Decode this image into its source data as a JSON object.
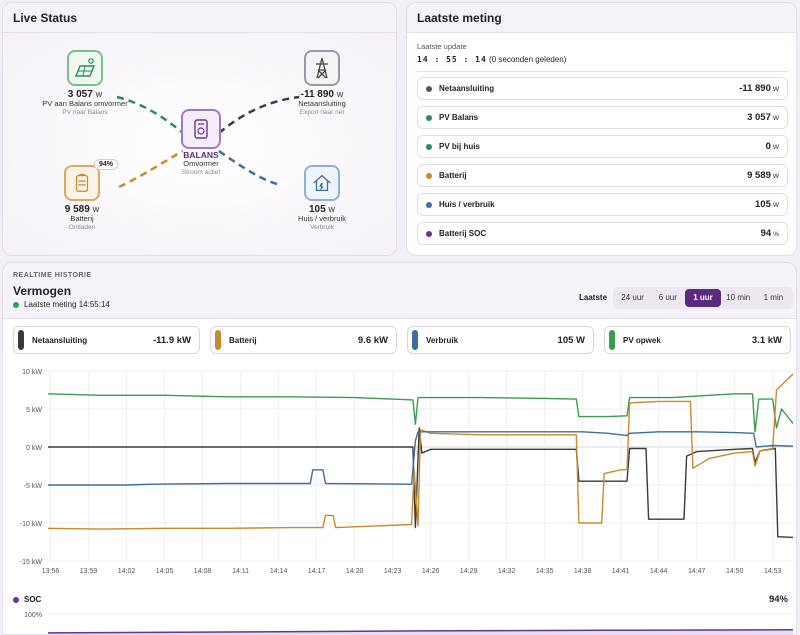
{
  "live": {
    "title": "Live Status",
    "pv": {
      "value": "3 057",
      "unit": "W",
      "label": "PV aan Balans omvormer",
      "sub": "PV naar Balans",
      "icon": "solar-panel-icon"
    },
    "grid": {
      "value": "-11 890",
      "unit": "W",
      "label": "Netaansluiting",
      "sub": "Export naar net",
      "icon": "power-pylon-icon"
    },
    "inverter": {
      "label": "BALANS",
      "name": "Omvormer",
      "sub": "Stroom actief",
      "icon": "inverter-icon"
    },
    "battery": {
      "value": "9 589",
      "unit": "W",
      "label": "Batterij",
      "sub": "Ontladen",
      "soc": "94%",
      "icon": "battery-icon"
    },
    "house": {
      "value": "105",
      "unit": "W",
      "label": "Huis / verbruik",
      "sub": "Verbruik",
      "icon": "house-icon"
    }
  },
  "meting": {
    "title": "Laatste meting",
    "update_label": "Laatste update",
    "update_time": "14 : 55 : 14",
    "update_ago": "(0 seconden geleden)",
    "rows": [
      {
        "label": "Netaansluiting",
        "value": "-11 890",
        "unit": "W",
        "color": "#555555"
      },
      {
        "label": "PV Balans",
        "value": "3 057",
        "unit": "W",
        "color": "#2e8b57"
      },
      {
        "label": "PV bij huis",
        "value": "0",
        "unit": "W",
        "color": "#2e8b57"
      },
      {
        "label": "Batterij",
        "value": "9 589",
        "unit": "W",
        "color": "#c98a2c"
      },
      {
        "label": "Huis / verbruik",
        "value": "105",
        "unit": "W",
        "color": "#3c6e9e"
      },
      {
        "label": "Batterij SOC",
        "value": "94",
        "unit": "%",
        "color": "#6a3391"
      }
    ]
  },
  "history": {
    "eyebrow": "REALTIME HISTORIE",
    "title": "Vermogen",
    "subtitle": "Laatste meting 14:55:14",
    "range_label": "Laatste",
    "ranges": [
      "24 uur",
      "6 uur",
      "1 uur",
      "10 min",
      "1 min"
    ],
    "active_range": "1 uur",
    "series_cards": [
      {
        "name": "Netaansluiting",
        "value": "-11.9 kW",
        "color": "#3a3a3a"
      },
      {
        "name": "Batterij",
        "value": "9.6 kW",
        "color": "#c98a2c"
      },
      {
        "name": "Verbruik",
        "value": "105 W",
        "color": "#3c6e9e"
      },
      {
        "name": "PV opwek",
        "value": "3.1 kW",
        "color": "#3c9a52"
      }
    ],
    "soc_label": "SOC",
    "soc_value": "94%"
  },
  "chart_data": [
    {
      "type": "line",
      "title": "",
      "ylim": [
        -15,
        10
      ],
      "yticks": [
        10,
        5,
        0,
        -5,
        -10,
        -15
      ],
      "ytick_labels": [
        "10 kW",
        "5 kW",
        "0 kW",
        "-5 kW",
        "-10 kW",
        "-15 kW"
      ],
      "xlim": [
        55.8,
        114.6
      ],
      "xtick_labels": [
        "13:56",
        "13:59",
        "14:02",
        "14:05",
        "14:08",
        "14:11",
        "14:14",
        "14:17",
        "14:20",
        "14:23",
        "14:26",
        "14:29",
        "14:32",
        "14:35",
        "14:38",
        "14:41",
        "14:44",
        "14:47",
        "14:50",
        "14:53"
      ],
      "grid": true,
      "series": [
        {
          "name": "PV opwek",
          "color": "#3c9a52",
          "points": [
            [
              55.8,
              7.0
            ],
            [
              60,
              6.8
            ],
            [
              65,
              6.8
            ],
            [
              70,
              6.6
            ],
            [
              75,
              6.6
            ],
            [
              80,
              6.5
            ],
            [
              83,
              6.3
            ],
            [
              84.6,
              6.2
            ],
            [
              84.8,
              3.0
            ],
            [
              85,
              6.5
            ],
            [
              90,
              6.5
            ],
            [
              95,
              6.4
            ],
            [
              97.5,
              6.3
            ],
            [
              97.7,
              4.0
            ],
            [
              100,
              4.0
            ],
            [
              101.5,
              4.1
            ],
            [
              101.7,
              6.5
            ],
            [
              105,
              6.5
            ],
            [
              108,
              6.8
            ],
            [
              110,
              7.0
            ],
            [
              111.4,
              7.0
            ],
            [
              111.6,
              2.0
            ],
            [
              111.9,
              6.3
            ],
            [
              113,
              6.3
            ],
            [
              113.3,
              2.5
            ],
            [
              113.7,
              5.0
            ],
            [
              114.6,
              3.1
            ]
          ]
        },
        {
          "name": "Netaansluiting",
          "color": "#3a3a3a",
          "points": [
            [
              55.8,
              0
            ],
            [
              84.6,
              0
            ],
            [
              84.8,
              -10.6
            ],
            [
              85.1,
              2.5
            ],
            [
              85.3,
              -0.8
            ],
            [
              86,
              -0.3
            ],
            [
              95,
              -0.3
            ],
            [
              97.5,
              -0.3
            ],
            [
              97.7,
              -4.5
            ],
            [
              100,
              -4.5
            ],
            [
              101.5,
              -4.5
            ],
            [
              101.7,
              -0.2
            ],
            [
              103,
              -0.2
            ],
            [
              103.2,
              -9.5
            ],
            [
              106,
              -9.5
            ],
            [
              106.2,
              -1.2
            ],
            [
              107,
              -0.6
            ],
            [
              110,
              -0.3
            ],
            [
              111.4,
              -0.2
            ],
            [
              111.6,
              -2.0
            ],
            [
              112,
              -0.5
            ],
            [
              113.2,
              -0.2
            ],
            [
              113.4,
              -11.8
            ],
            [
              114.6,
              -11.9
            ]
          ]
        },
        {
          "name": "Batterij",
          "color": "#c98a2c",
          "points": [
            [
              55.8,
              -10.7
            ],
            [
              60,
              -10.8
            ],
            [
              65,
              -10.7
            ],
            [
              70,
              -10.7
            ],
            [
              75,
              -10.6
            ],
            [
              77.5,
              -10.6
            ],
            [
              77.7,
              -9.0
            ],
            [
              78.3,
              -9.0
            ],
            [
              78.5,
              -10.6
            ],
            [
              84.5,
              -10.2
            ],
            [
              84.7,
              -3.0
            ],
            [
              85,
              -10.4
            ],
            [
              85.2,
              2.3
            ],
            [
              86,
              1.8
            ],
            [
              90,
              1.6
            ],
            [
              95,
              1.6
            ],
            [
              97.5,
              1.6
            ],
            [
              97.7,
              -10.0
            ],
            [
              99.5,
              -10.0
            ],
            [
              99.7,
              -3.5
            ],
            [
              101,
              -3.0
            ],
            [
              101.5,
              -3.0
            ],
            [
              101.7,
              5.8
            ],
            [
              104,
              6.0
            ],
            [
              106.5,
              6.0
            ],
            [
              106.7,
              -2.8
            ],
            [
              108,
              -1.5
            ],
            [
              110,
              -0.8
            ],
            [
              111.4,
              -0.6
            ],
            [
              111.6,
              -2.5
            ],
            [
              112,
              -0.5
            ],
            [
              113,
              -0.3
            ],
            [
              113.3,
              7.5
            ],
            [
              114.6,
              9.6
            ]
          ]
        },
        {
          "name": "Verbruik",
          "color": "#3c6e9e",
          "points": [
            [
              55.8,
              -5.0
            ],
            [
              62,
              -5.0
            ],
            [
              64,
              -4.9
            ],
            [
              70,
              -4.8
            ],
            [
              75,
              -4.8
            ],
            [
              76.5,
              -4.8
            ],
            [
              76.7,
              -3.0
            ],
            [
              77.5,
              -3.0
            ],
            [
              77.7,
              -4.8
            ],
            [
              84.5,
              -4.9
            ],
            [
              84.8,
              0.8
            ],
            [
              85,
              2.0
            ],
            [
              90,
              2.0
            ],
            [
              95,
              2.0
            ],
            [
              98,
              2.0
            ],
            [
              100,
              1.8
            ],
            [
              101.5,
              1.5
            ],
            [
              101.7,
              1.8
            ],
            [
              104,
              2.0
            ],
            [
              107,
              2.0
            ],
            [
              110,
              1.9
            ],
            [
              111.5,
              1.8
            ],
            [
              111.7,
              0
            ],
            [
              113,
              0.2
            ],
            [
              114.6,
              0.1
            ]
          ]
        }
      ]
    },
    {
      "type": "area",
      "title": "",
      "ylim": [
        80,
        100
      ],
      "ytick_labels": [
        "100%"
      ],
      "series": [
        {
          "name": "SOC",
          "color": "#6a3391",
          "points": [
            [
              55.8,
              87
            ],
            [
              70,
              89
            ],
            [
              85,
              91.5
            ],
            [
              100,
              93
            ],
            [
              114.6,
              94
            ]
          ]
        }
      ]
    }
  ]
}
